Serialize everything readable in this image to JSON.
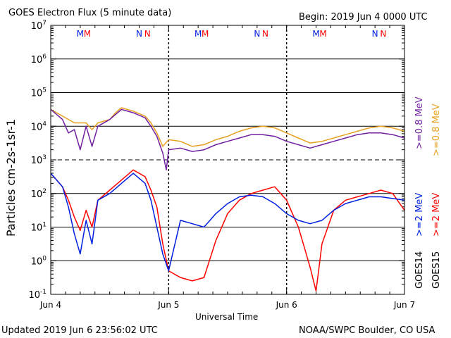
{
  "header": {
    "title": "GOES Electron Flux (5 minute data)",
    "begin": "Begin: 2019 Jun 4 0000 UTC"
  },
  "footer": {
    "updated": "Updated 2019 Jun  6 23:56:02 UTC",
    "credit": "NOAA/SWPC Boulder, CO USA"
  },
  "chart_data": {
    "type": "line",
    "title": "GOES Electron Flux (5 minute data)",
    "xlabel": "Universal Time",
    "ylabel": "Particles cm-2s-1sr-1",
    "x_ticks": [
      "Jun 4",
      "Jun 5",
      "Jun 6",
      "Jun 7"
    ],
    "y_ticks": [
      "10^-1",
      "10^0",
      "10^1",
      "10^2",
      "10^3",
      "10^4",
      "10^5",
      "10^6",
      "10^7"
    ],
    "xlim_days": [
      0,
      3
    ],
    "ylim_log10": [
      -1,
      7
    ],
    "grid": true,
    "legend_placement": "right-rotated",
    "legend": [
      {
        "text": ">=0.8 MeV",
        "sat": "GOES15",
        "color": "#e8a020"
      },
      {
        "text": ">=0.8 MeV",
        "sat": "GOES14",
        "color": "#7020a0"
      },
      {
        "text": ">=2 MeV",
        "sat": "GOES15",
        "color": "#ff0000"
      },
      {
        "text": ">=2 MeV",
        "sat": "GOES14",
        "color": "#0020e0"
      }
    ],
    "satellites": [
      "GOES14",
      "GOES15"
    ],
    "markers": [
      {
        "label": "M",
        "x": 0.25,
        "color": "#0020e0"
      },
      {
        "label": "M",
        "x": 0.31,
        "color": "#ff0000"
      },
      {
        "label": "N",
        "x": 0.75,
        "color": "#0020e0"
      },
      {
        "label": "N",
        "x": 0.82,
        "color": "#ff0000"
      },
      {
        "label": "M",
        "x": 1.25,
        "color": "#0020e0"
      },
      {
        "label": "M",
        "x": 1.31,
        "color": "#ff0000"
      },
      {
        "label": "N",
        "x": 1.75,
        "color": "#0020e0"
      },
      {
        "label": "N",
        "x": 1.82,
        "color": "#ff0000"
      },
      {
        "label": "M",
        "x": 2.25,
        "color": "#0020e0"
      },
      {
        "label": "M",
        "x": 2.31,
        "color": "#ff0000"
      },
      {
        "label": "N",
        "x": 2.75,
        "color": "#0020e0"
      },
      {
        "label": "N",
        "x": 2.82,
        "color": "#ff0000"
      }
    ],
    "series": [
      {
        "name": "GOES15 >=0.8 MeV",
        "color": "#e8a020",
        "x": [
          0,
          0.1,
          0.2,
          0.3,
          0.35,
          0.4,
          0.5,
          0.55,
          0.6,
          0.7,
          0.8,
          0.85,
          0.9,
          0.95,
          1.0,
          1.1,
          1.2,
          1.3,
          1.4,
          1.5,
          1.6,
          1.7,
          1.8,
          1.9,
          2.0,
          2.1,
          2.2,
          2.3,
          2.4,
          2.5,
          2.6,
          2.7,
          2.8,
          2.9,
          3.0
        ],
        "y": [
          4.5,
          4.3,
          4.1,
          4.1,
          3.9,
          4.1,
          4.2,
          4.4,
          4.55,
          4.45,
          4.3,
          4.1,
          3.8,
          3.4,
          3.6,
          3.55,
          3.4,
          3.45,
          3.6,
          3.7,
          3.85,
          3.95,
          4.0,
          3.95,
          3.8,
          3.65,
          3.5,
          3.55,
          3.65,
          3.75,
          3.85,
          3.95,
          4.0,
          3.95,
          3.85
        ]
      },
      {
        "name": "GOES14 >=0.8 MeV",
        "color": "#7020a0",
        "x": [
          0,
          0.1,
          0.15,
          0.2,
          0.25,
          0.3,
          0.35,
          0.4,
          0.5,
          0.55,
          0.6,
          0.7,
          0.8,
          0.85,
          0.9,
          0.95,
          0.98,
          1.0,
          1.1,
          1.2,
          1.3,
          1.4,
          1.5,
          1.6,
          1.7,
          1.8,
          1.9,
          2.0,
          2.1,
          2.2,
          2.3,
          2.4,
          2.5,
          2.6,
          2.7,
          2.8,
          2.9,
          3.0
        ],
        "y": [
          4.5,
          4.2,
          3.8,
          3.9,
          3.3,
          4.0,
          3.4,
          4.0,
          4.2,
          4.35,
          4.5,
          4.4,
          4.25,
          4.0,
          3.7,
          3.2,
          2.7,
          3.3,
          3.35,
          3.25,
          3.3,
          3.45,
          3.55,
          3.65,
          3.75,
          3.75,
          3.7,
          3.55,
          3.45,
          3.35,
          3.45,
          3.55,
          3.65,
          3.75,
          3.8,
          3.8,
          3.75,
          3.65
        ]
      },
      {
        "name": "GOES15 >=2 MeV",
        "color": "#ff0000",
        "x": [
          0,
          0.1,
          0.15,
          0.2,
          0.25,
          0.3,
          0.35,
          0.4,
          0.5,
          0.6,
          0.7,
          0.8,
          0.85,
          0.9,
          0.95,
          1.0,
          1.1,
          1.2,
          1.3,
          1.4,
          1.5,
          1.6,
          1.7,
          1.8,
          1.9,
          2.0,
          2.1,
          2.15,
          2.2,
          2.25,
          2.3,
          2.4,
          2.5,
          2.6,
          2.7,
          2.8,
          2.9,
          3.0
        ],
        "y": [
          2.6,
          2.2,
          1.8,
          1.3,
          0.9,
          1.5,
          1.0,
          1.8,
          2.1,
          2.4,
          2.7,
          2.5,
          2.1,
          1.6,
          0.5,
          -0.3,
          -0.5,
          -0.6,
          -0.5,
          0.6,
          1.4,
          1.8,
          2.0,
          2.1,
          2.2,
          1.8,
          1.0,
          0.4,
          -0.2,
          -0.9,
          0.5,
          1.5,
          1.8,
          1.9,
          2.0,
          2.1,
          2.0,
          1.5
        ]
      },
      {
        "name": "GOES14 >=2 MeV",
        "color": "#0020e0",
        "x": [
          0,
          0.1,
          0.15,
          0.2,
          0.25,
          0.3,
          0.35,
          0.4,
          0.5,
          0.6,
          0.7,
          0.8,
          0.85,
          0.9,
          0.95,
          1.0,
          1.1,
          1.2,
          1.3,
          1.4,
          1.5,
          1.6,
          1.7,
          1.8,
          1.9,
          2.0,
          2.1,
          2.2,
          2.3,
          2.4,
          2.5,
          2.6,
          2.7,
          2.8,
          2.9,
          3.0
        ],
        "y": [
          2.6,
          2.2,
          1.6,
          0.8,
          0.2,
          1.2,
          0.5,
          1.8,
          2.0,
          2.3,
          2.6,
          2.3,
          1.8,
          1.0,
          0.2,
          -0.3,
          1.2,
          1.1,
          1.0,
          1.4,
          1.7,
          1.9,
          1.95,
          1.9,
          1.7,
          1.4,
          1.2,
          1.1,
          1.2,
          1.5,
          1.7,
          1.8,
          1.9,
          1.9,
          1.85,
          1.8
        ]
      }
    ]
  }
}
